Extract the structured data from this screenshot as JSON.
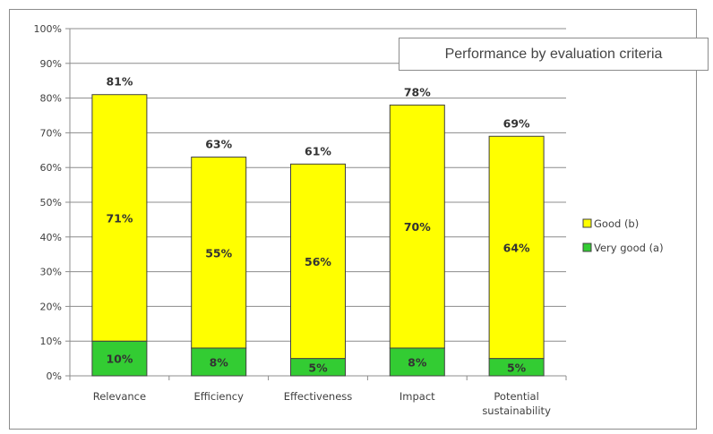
{
  "chart_data": {
    "type": "bar",
    "stacked": true,
    "title": "Performance by evaluation criteria",
    "categories": [
      "Relevance",
      "Efficiency",
      "Effectiveness",
      "Impact",
      "Potential sustainability"
    ],
    "category_label_lines": [
      [
        "Relevance"
      ],
      [
        "Efficiency"
      ],
      [
        "Effectiveness"
      ],
      [
        "Impact"
      ],
      [
        "Potential",
        "sustainability"
      ]
    ],
    "series": [
      {
        "name": "Very good (a)",
        "values": [
          10,
          8,
          5,
          8,
          5
        ],
        "labels": [
          "10%",
          "8%",
          "5%",
          "8%",
          "5%"
        ],
        "color": "#33cc33"
      },
      {
        "name": "Good (b)",
        "values": [
          71,
          55,
          56,
          70,
          64
        ],
        "labels": [
          "71%",
          "55%",
          "56%",
          "70%",
          "64%"
        ],
        "color": "#ffff00"
      }
    ],
    "totals": [
      81,
      63,
      61,
      78,
      69
    ],
    "total_labels": [
      "81%",
      "63%",
      "61%",
      "78%",
      "69%"
    ],
    "ylim": [
      0,
      100
    ],
    "yticks": [
      0,
      10,
      20,
      30,
      40,
      50,
      60,
      70,
      80,
      90,
      100
    ],
    "ytick_labels": [
      "0%",
      "10%",
      "20%",
      "30%",
      "40%",
      "50%",
      "60%",
      "70%",
      "80%",
      "90%",
      "100%"
    ],
    "grid": true,
    "legend_position": "right",
    "legend": [
      {
        "name": "Good (b)",
        "color": "#ffff00"
      },
      {
        "name": "Very good (a)",
        "color": "#33cc33"
      }
    ]
  }
}
